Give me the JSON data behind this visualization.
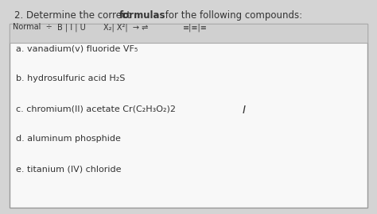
{
  "title_prefix": "2. Determine the correct ",
  "title_bold": "formulas",
  "title_suffix": " for the following compounds:",
  "items": [
    "a. vanadium(ⅴ) fluoride VF₅",
    "b. hydrosulfuric acid H₂S",
    "c. chromium(II) acetate Cr(C₂H₃O₂)2",
    "d. aluminum phosphide",
    "e. titanium (IV) chloride"
  ],
  "bg_outer": "#c8c8c8",
  "bg_title_area": "#d8d8d8",
  "box_bg": "#f0f0f0",
  "toolbar_bg": "#cccccc",
  "text_color": "#333333",
  "title_fontsize": 8.5,
  "toolbar_fontsize": 7.0,
  "item_fontsize": 8.0,
  "fig_w": 4.74,
  "fig_h": 2.7,
  "dpi": 100
}
